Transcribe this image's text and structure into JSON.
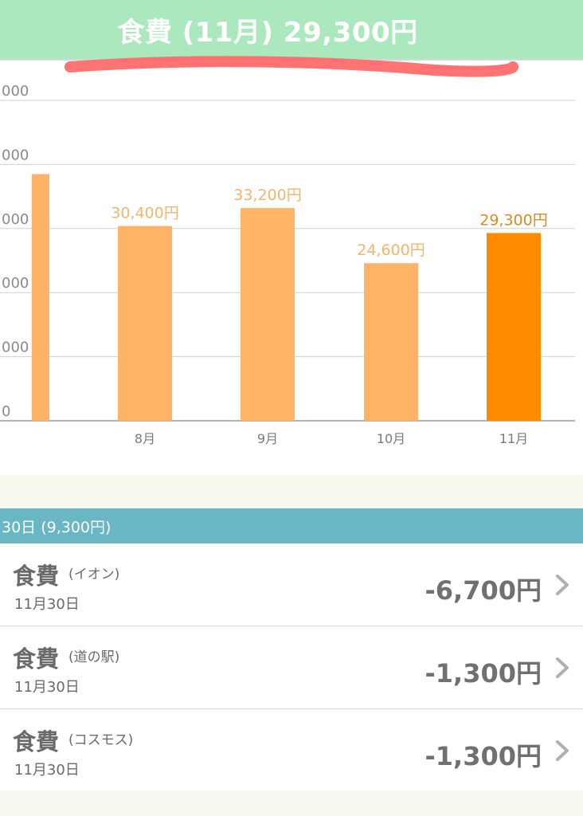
{
  "header": {
    "title": "食費 (11月) 29,300円",
    "bg_color": "#abe8bd"
  },
  "annotation": {
    "icon": "red-pen-underline",
    "color": "#ff6b6b"
  },
  "chart_data": {
    "type": "bar",
    "categories": [
      "",
      "8月",
      "9月",
      "10月",
      "11月"
    ],
    "values": [
      38500,
      30400,
      33200,
      24600,
      29300
    ],
    "data_labels": [
      "",
      "30,400円",
      "33,200円",
      "24,600円",
      "29,300円"
    ],
    "y_tick_labels": [
      "0",
      "000",
      "000",
      "000",
      "000",
      "000"
    ],
    "y_tick_values": [
      0,
      10000,
      20000,
      30000,
      40000,
      50000
    ],
    "ylim": [
      0,
      50000
    ],
    "grid": true,
    "bar_color": "#ffb366",
    "highlight_color": "#ff8a00",
    "highlight_index": 4,
    "label_color": "#f0b56e",
    "highlight_label_color": "#d98a25"
  },
  "date_group": {
    "label": "30日 (9,300円)",
    "bg_color": "#69b6c4"
  },
  "transactions": [
    {
      "category": "食費",
      "store": "(イオン)",
      "date": "11月30日",
      "amount": "-6,700円"
    },
    {
      "category": "食費",
      "store": "(道の駅)",
      "date": "11月30日",
      "amount": "-1,300円"
    },
    {
      "category": "食費",
      "store": "(コスモス)",
      "date": "11月30日",
      "amount": "-1,300円"
    }
  ]
}
